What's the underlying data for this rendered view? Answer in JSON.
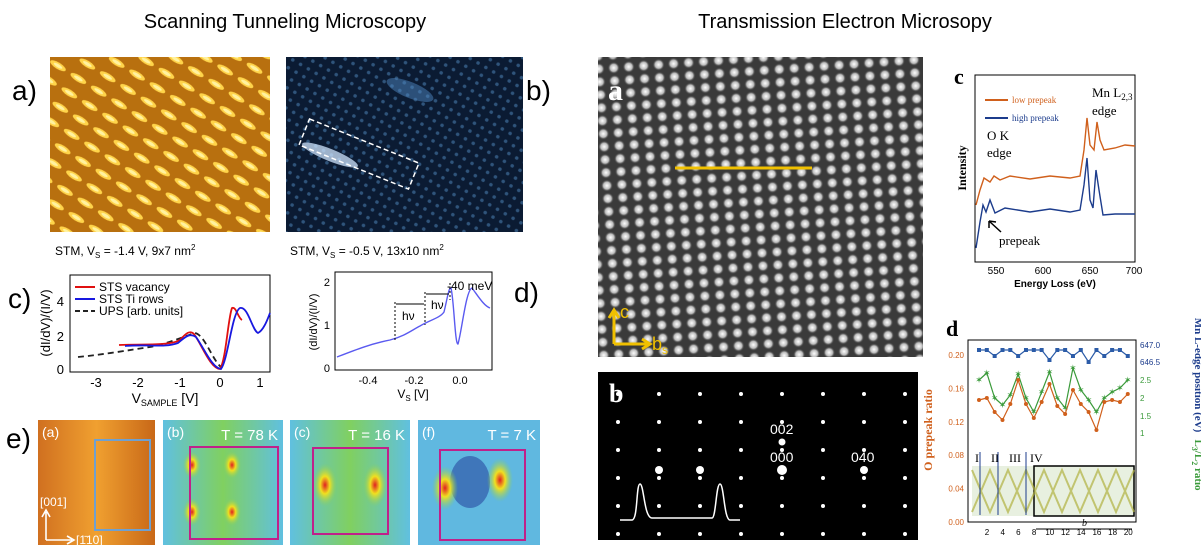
{
  "stm": {
    "title": "Scanning Tunneling Microscopy",
    "panel_labels": [
      "a)",
      "b)",
      "c)",
      "d)",
      "e)"
    ],
    "caption_a": {
      "pre": "STM, V",
      "sub": "S",
      "post": " = -1.4 V, 9x7 nm",
      "sup": "2"
    },
    "caption_b": {
      "pre": "STM, V",
      "sub": "S",
      "post": " = -0.5 V, 13x10 nm",
      "sup": "2"
    },
    "plot_c": {
      "legend": [
        "STS vacancy",
        "STS Ti rows",
        "UPS [arb. units]"
      ],
      "yticks": [
        "0",
        "2",
        "4"
      ],
      "xticks": [
        "-3",
        "-2",
        "-1",
        "0",
        "1"
      ],
      "ylabel": "(dI/dV)/(I/V)",
      "xlabel": {
        "pre": "V",
        "sub": "SAMPLE",
        "post": " [V]"
      }
    },
    "plot_d": {
      "yticks": [
        "0",
        "1",
        "2"
      ],
      "xticks": [
        "-0.4",
        "-0.2",
        "0.0"
      ],
      "ylabel": "(dI/dV)/(I/V)",
      "xlabel": {
        "pre": "V",
        "sub": "S",
        "post": " [V]"
      },
      "annotations": [
        "hν",
        "hν",
        "-40 meV"
      ]
    },
    "panel_e": {
      "labels": [
        "(a)",
        "(b)",
        "(c)",
        "(f)"
      ],
      "temperatures": [
        "T = 78 K",
        "T = 16 K",
        "T = 7 K"
      ],
      "directions": [
        "[001]",
        "[1̄10]"
      ]
    }
  },
  "tem": {
    "title": "Transmission Electron Microsopy",
    "panel_labels": [
      "a",
      "b",
      "c",
      "d"
    ],
    "panel_a_axes": {
      "c": "c",
      "b": "b",
      "b_sub": "s"
    },
    "panel_b_spots": [
      "002",
      "000",
      "040"
    ],
    "plot_c": {
      "legend": [
        "low prepeak",
        "high prepeak"
      ],
      "mn_edge": {
        "pre": "Mn L",
        "sub": "2,3",
        "post": "edge"
      },
      "o_edge": [
        "O K",
        "edge"
      ],
      "prepeak": "prepeak",
      "ylabel": "Intensity",
      "xlabel": "Energy Loss (eV)",
      "xticks": [
        "550",
        "600",
        "650",
        "700"
      ]
    },
    "plot_d": {
      "ylabel_left": "O prepeak ratio",
      "ylabel_right_top": "Mn L-edge position (eV)",
      "ylabel_right_bottom": {
        "pre": "L",
        "sub1": "3",
        "mid": "/L",
        "sub2": "2",
        "post": " ratio"
      },
      "yticks_left": [
        "0.20",
        "0.16",
        "0.12",
        "0.08",
        "0.04",
        "0.00"
      ],
      "yticks_right": [
        "647.0",
        "646.5",
        "2.5",
        "2",
        "1.5",
        "1"
      ],
      "xticks": [
        "2",
        "4",
        "6",
        "8",
        "10",
        "12",
        "14",
        "16",
        "18",
        "20"
      ],
      "roman": [
        "I",
        "II",
        "III",
        "IV"
      ],
      "inset_label": "b"
    }
  }
}
